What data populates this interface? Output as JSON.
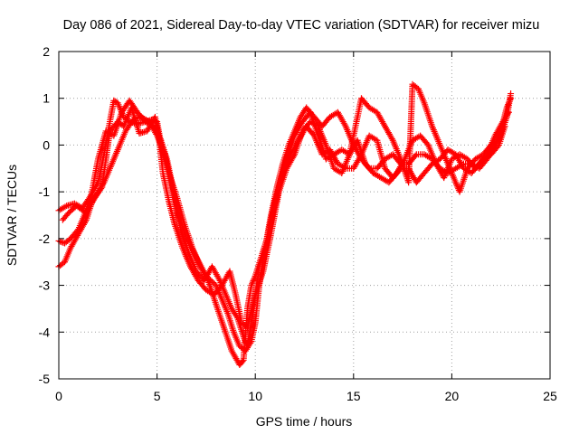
{
  "chart_data": {
    "type": "scatter",
    "title": "Day 086 of 2021, Sidereal Day-to-day VTEC variation (SDTVAR) for receiver mizu",
    "xlabel": "GPS time / hours",
    "ylabel": "SDTVAR / TECUs",
    "xlim": [
      0,
      25
    ],
    "ylim": [
      -5,
      2
    ],
    "x_ticks": [
      0,
      5,
      10,
      15,
      20,
      25
    ],
    "y_ticks": [
      2,
      1,
      0,
      -1,
      -2,
      -3,
      -4,
      -5
    ],
    "x_tick_labels": [
      "0",
      "5",
      "10",
      "15",
      "20",
      "25"
    ],
    "y_tick_labels": [
      "2",
      "1",
      "0",
      "-1",
      "-2",
      "-3",
      "-4",
      "-5"
    ],
    "grid": true,
    "marker": "plus",
    "color": "#ff0000",
    "series": [
      {
        "points": [
          [
            0.0,
            -1.4
          ],
          [
            0.4,
            -1.3
          ],
          [
            0.8,
            -1.25
          ],
          [
            1.2,
            -1.35
          ],
          [
            1.6,
            -1.1
          ],
          [
            2.0,
            -0.8
          ],
          [
            2.3,
            -0.2
          ],
          [
            2.6,
            0.5
          ],
          [
            2.8,
            0.95
          ],
          [
            3.0,
            0.9
          ],
          [
            3.3,
            0.6
          ],
          [
            3.6,
            0.5
          ],
          [
            4.0,
            0.45
          ],
          [
            4.4,
            0.5
          ],
          [
            4.8,
            0.4
          ],
          [
            5.0,
            0.3
          ],
          [
            5.2,
            0.1
          ],
          [
            5.5,
            -0.3
          ],
          [
            5.8,
            -0.9
          ],
          [
            6.1,
            -1.5
          ],
          [
            6.5,
            -2.0
          ],
          [
            7.0,
            -2.4
          ],
          [
            7.5,
            -2.8
          ],
          [
            8.0,
            -3.0
          ],
          [
            8.3,
            -3.3
          ],
          [
            8.6,
            -3.6
          ],
          [
            8.9,
            -4.0
          ],
          [
            9.2,
            -4.3
          ],
          [
            9.5,
            -4.4
          ],
          [
            9.8,
            -4.2
          ],
          [
            10.0,
            -3.8
          ],
          [
            10.2,
            -3.0
          ],
          [
            10.5,
            -2.2
          ],
          [
            10.8,
            -1.5
          ],
          [
            11.1,
            -0.9
          ],
          [
            11.4,
            -0.4
          ],
          [
            11.7,
            0.0
          ],
          [
            12.0,
            0.3
          ],
          [
            12.3,
            0.6
          ],
          [
            12.6,
            0.8
          ],
          [
            13.0,
            0.6
          ],
          [
            13.4,
            0.4
          ],
          [
            13.8,
            0.6
          ],
          [
            14.2,
            0.7
          ],
          [
            14.6,
            0.4
          ],
          [
            15.0,
            0.0
          ],
          [
            15.4,
            -0.3
          ],
          [
            15.8,
            -0.5
          ],
          [
            16.2,
            -0.5
          ],
          [
            16.6,
            -0.3
          ],
          [
            17.0,
            -0.2
          ],
          [
            17.4,
            -0.4
          ],
          [
            17.8,
            -0.4
          ],
          [
            18.2,
            -0.2
          ],
          [
            18.6,
            -0.2
          ],
          [
            19.0,
            -0.3
          ],
          [
            19.4,
            -0.5
          ],
          [
            19.8,
            -0.6
          ],
          [
            20.2,
            -0.5
          ],
          [
            20.6,
            -0.4
          ],
          [
            21.0,
            -0.4
          ],
          [
            21.4,
            -0.5
          ],
          [
            21.8,
            -0.3
          ],
          [
            22.2,
            0.0
          ],
          [
            22.5,
            0.3
          ],
          [
            22.8,
            0.8
          ],
          [
            23.0,
            1.0
          ]
        ]
      },
      {
        "points": [
          [
            0.0,
            -2.6
          ],
          [
            0.3,
            -2.5
          ],
          [
            0.6,
            -2.2
          ],
          [
            1.0,
            -1.9
          ],
          [
            1.4,
            -1.6
          ],
          [
            1.7,
            -1.2
          ],
          [
            2.0,
            -1.0
          ],
          [
            2.3,
            -0.8
          ],
          [
            2.6,
            -0.5
          ],
          [
            3.0,
            -0.1
          ],
          [
            3.4,
            0.3
          ],
          [
            3.8,
            0.55
          ],
          [
            4.2,
            0.6
          ],
          [
            4.6,
            0.5
          ],
          [
            5.0,
            0.2
          ],
          [
            5.4,
            -0.2
          ],
          [
            5.8,
            -1.0
          ],
          [
            6.2,
            -1.8
          ],
          [
            6.6,
            -2.3
          ],
          [
            7.0,
            -2.7
          ],
          [
            7.4,
            -2.9
          ],
          [
            7.8,
            -2.6
          ],
          [
            8.2,
            -2.9
          ],
          [
            8.5,
            -3.2
          ],
          [
            8.8,
            -3.5
          ],
          [
            9.1,
            -3.7
          ],
          [
            9.4,
            -4.1
          ],
          [
            9.6,
            -4.3
          ],
          [
            9.9,
            -3.5
          ],
          [
            10.2,
            -2.6
          ],
          [
            10.6,
            -2.0
          ],
          [
            11.0,
            -1.2
          ],
          [
            11.4,
            -0.6
          ],
          [
            11.8,
            -0.2
          ],
          [
            12.2,
            0.1
          ],
          [
            12.6,
            0.4
          ],
          [
            13.0,
            0.2
          ],
          [
            13.4,
            -0.2
          ],
          [
            13.8,
            -0.1
          ],
          [
            14.2,
            -0.4
          ],
          [
            14.6,
            -0.5
          ],
          [
            15.0,
            -0.5
          ],
          [
            15.4,
            -0.2
          ],
          [
            15.8,
            0.2
          ],
          [
            16.2,
            0.1
          ],
          [
            16.6,
            -0.5
          ],
          [
            17.0,
            -0.7
          ],
          [
            17.4,
            -0.5
          ],
          [
            17.8,
            -0.5
          ],
          [
            18.2,
            -0.8
          ],
          [
            18.6,
            -0.6
          ],
          [
            19.0,
            -0.4
          ],
          [
            19.4,
            -0.3
          ],
          [
            19.8,
            -0.1
          ],
          [
            20.2,
            -0.2
          ],
          [
            20.6,
            -0.5
          ],
          [
            21.0,
            -0.6
          ],
          [
            21.4,
            -0.4
          ],
          [
            21.8,
            -0.2
          ],
          [
            22.2,
            0.2
          ],
          [
            22.6,
            0.5
          ],
          [
            22.9,
            0.7
          ]
        ]
      },
      {
        "points": [
          [
            0.0,
            -2.05
          ],
          [
            0.3,
            -2.1
          ],
          [
            0.6,
            -2.0
          ],
          [
            1.0,
            -1.8
          ],
          [
            1.3,
            -1.5
          ],
          [
            1.6,
            -1.2
          ],
          [
            2.0,
            -0.3
          ],
          [
            2.4,
            0.3
          ],
          [
            2.8,
            0.2
          ],
          [
            3.2,
            0.7
          ],
          [
            3.6,
            0.95
          ],
          [
            4.0,
            0.7
          ],
          [
            4.4,
            0.5
          ],
          [
            4.8,
            0.55
          ],
          [
            5.0,
            0.5
          ],
          [
            5.3,
            -0.2
          ],
          [
            5.6,
            -0.6
          ],
          [
            6.0,
            -1.1
          ],
          [
            6.4,
            -1.7
          ],
          [
            6.8,
            -2.2
          ],
          [
            7.2,
            -2.6
          ],
          [
            7.6,
            -2.9
          ],
          [
            8.0,
            -3.4
          ],
          [
            8.4,
            -3.9
          ],
          [
            8.8,
            -4.4
          ],
          [
            9.2,
            -4.7
          ],
          [
            9.4,
            -4.6
          ],
          [
            9.6,
            -3.5
          ],
          [
            9.8,
            -3.0
          ],
          [
            10.0,
            -2.8
          ],
          [
            10.3,
            -2.4
          ],
          [
            10.6,
            -2.0
          ],
          [
            11.0,
            -1.3
          ],
          [
            11.3,
            -0.8
          ],
          [
            11.6,
            -0.3
          ],
          [
            12.0,
            0.2
          ],
          [
            12.4,
            0.5
          ],
          [
            12.8,
            0.7
          ],
          [
            13.2,
            0.2
          ],
          [
            13.6,
            -0.3
          ],
          [
            14.0,
            -0.2
          ],
          [
            14.4,
            -0.1
          ],
          [
            14.8,
            -0.2
          ],
          [
            15.4,
            1.0
          ],
          [
            15.8,
            0.8
          ],
          [
            16.2,
            0.7
          ],
          [
            16.6,
            0.4
          ],
          [
            17.0,
            0.1
          ],
          [
            17.4,
            -0.3
          ],
          [
            17.8,
            -0.8
          ],
          [
            18.0,
            1.3
          ],
          [
            18.3,
            1.2
          ],
          [
            18.6,
            0.9
          ],
          [
            19.0,
            0.4
          ],
          [
            19.4,
            0.0
          ],
          [
            19.8,
            -0.4
          ],
          [
            20.2,
            -0.8
          ],
          [
            20.4,
            -1.0
          ],
          [
            20.8,
            -0.5
          ],
          [
            21.2,
            -0.3
          ],
          [
            21.6,
            -0.2
          ],
          [
            22.0,
            0.0
          ],
          [
            22.4,
            0.1
          ],
          [
            22.8,
            0.6
          ],
          [
            23.0,
            1.1
          ]
        ]
      },
      {
        "points": [
          [
            0.2,
            -1.6
          ],
          [
            0.5,
            -1.45
          ],
          [
            0.9,
            -1.3
          ],
          [
            1.4,
            -1.45
          ],
          [
            1.8,
            -1.15
          ],
          [
            2.2,
            -0.9
          ],
          [
            2.6,
            0.3
          ],
          [
            3.0,
            0.5
          ],
          [
            3.3,
            0.4
          ],
          [
            3.7,
            0.8
          ],
          [
            4.1,
            0.25
          ],
          [
            4.5,
            0.3
          ],
          [
            4.9,
            0.6
          ],
          [
            5.1,
            0.15
          ],
          [
            5.3,
            -0.6
          ],
          [
            5.6,
            -1.2
          ],
          [
            5.9,
            -1.7
          ],
          [
            6.3,
            -2.2
          ],
          [
            6.7,
            -2.6
          ],
          [
            7.1,
            -2.9
          ],
          [
            7.5,
            -3.1
          ],
          [
            7.9,
            -3.2
          ],
          [
            8.3,
            -3.0
          ],
          [
            8.7,
            -2.7
          ],
          [
            9.0,
            -3.2
          ],
          [
            9.3,
            -3.8
          ],
          [
            9.6,
            -3.9
          ],
          [
            10.0,
            -3.2
          ],
          [
            10.4,
            -2.7
          ],
          [
            10.8,
            -1.9
          ],
          [
            11.2,
            -1.0
          ],
          [
            11.6,
            -0.5
          ],
          [
            12.0,
            -0.2
          ],
          [
            12.4,
            0.3
          ],
          [
            12.8,
            0.5
          ],
          [
            13.2,
            0.4
          ],
          [
            13.6,
            0.0
          ],
          [
            14.0,
            -0.5
          ],
          [
            14.4,
            -0.6
          ],
          [
            14.8,
            -0.2
          ],
          [
            15.2,
            0.1
          ],
          [
            15.6,
            -0.4
          ],
          [
            16.0,
            -0.6
          ],
          [
            16.4,
            -0.7
          ],
          [
            16.8,
            -0.8
          ],
          [
            17.2,
            -0.6
          ],
          [
            17.6,
            -0.3
          ],
          [
            18.0,
            0.1
          ],
          [
            18.4,
            0.2
          ],
          [
            18.8,
            0.0
          ],
          [
            19.2,
            -0.4
          ],
          [
            19.6,
            -0.7
          ],
          [
            20.0,
            -0.3
          ],
          [
            20.4,
            -0.2
          ],
          [
            20.8,
            -0.3
          ],
          [
            21.2,
            -0.5
          ],
          [
            21.6,
            -0.3
          ],
          [
            22.0,
            -0.2
          ],
          [
            22.4,
            0.0
          ],
          [
            22.7,
            0.4
          ]
        ]
      }
    ]
  }
}
